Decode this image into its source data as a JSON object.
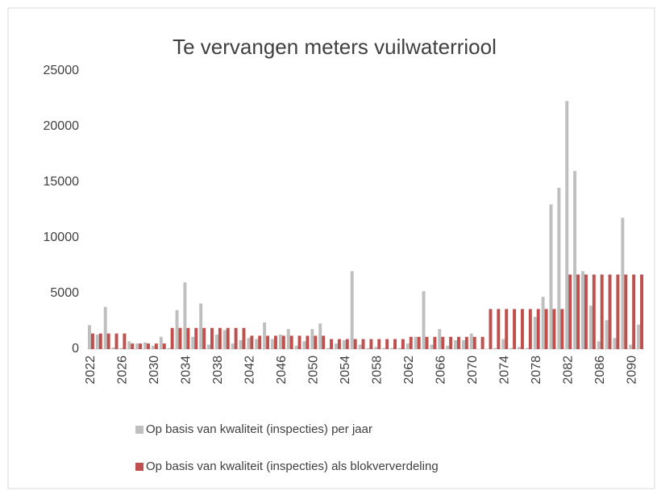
{
  "chart_data": {
    "type": "bar",
    "title": "Te vervangen meters vuilwaterriool",
    "categories": [
      "2022",
      null,
      null,
      null,
      "2026",
      null,
      null,
      null,
      "2030",
      null,
      null,
      null,
      "2034",
      null,
      null,
      null,
      "2038",
      null,
      null,
      null,
      "2042",
      null,
      null,
      null,
      "2046",
      null,
      null,
      null,
      "2050",
      null,
      null,
      null,
      "2054",
      null,
      null,
      null,
      "2058",
      null,
      null,
      null,
      "2062",
      null,
      null,
      null,
      "2066",
      null,
      null,
      null,
      "2070",
      null,
      null,
      null,
      "2074",
      null,
      null,
      null,
      "2078",
      null,
      null,
      null,
      "2082",
      null,
      null,
      null,
      "2086",
      null,
      null,
      null,
      "2090",
      null
    ],
    "series": [
      {
        "name": "Op basis van kwaliteit (inspecties) per jaar",
        "color": "#bfbfbf",
        "values": [
          2150,
          1300,
          3800,
          150,
          100,
          700,
          500,
          600,
          300,
          1100,
          100,
          3500,
          6000,
          1100,
          4100,
          400,
          1300,
          1700,
          500,
          800,
          1000,
          900,
          2400,
          900,
          1300,
          1800,
          300,
          700,
          1800,
          2300,
          100,
          500,
          800,
          7000,
          400,
          100,
          200,
          100,
          100,
          100,
          500,
          1100,
          5200,
          400,
          1800,
          300,
          800,
          800,
          1400,
          0,
          0,
          100,
          900,
          100,
          200,
          100,
          2900,
          4700,
          13000,
          14500,
          22300,
          16000,
          7000,
          3900,
          700,
          2600,
          1000,
          11800,
          400,
          2200
        ]
      },
      {
        "name": "Op basis van kwaliteit (inspecties) als blokververdeling",
        "color": "#c0504d",
        "values": [
          1400,
          1400,
          1400,
          1400,
          1400,
          500,
          500,
          500,
          500,
          500,
          1900,
          1900,
          1900,
          1900,
          1900,
          1900,
          1900,
          1900,
          1900,
          1900,
          1200,
          1200,
          1200,
          1200,
          1200,
          1200,
          1200,
          1200,
          1200,
          1200,
          900,
          900,
          900,
          900,
          900,
          900,
          900,
          900,
          900,
          900,
          1100,
          1100,
          1100,
          1100,
          1100,
          1100,
          1100,
          1100,
          1100,
          1100,
          3600,
          3600,
          3600,
          3600,
          3600,
          3600,
          3600,
          3600,
          3600,
          3600,
          6700,
          6700,
          6700,
          6700,
          6700,
          6700,
          6700,
          6700,
          6700,
          6700
        ]
      }
    ],
    "ylim": [
      0,
      25000
    ],
    "yticks": [
      0,
      5000,
      10000,
      15000,
      20000,
      25000
    ],
    "grid": false
  }
}
